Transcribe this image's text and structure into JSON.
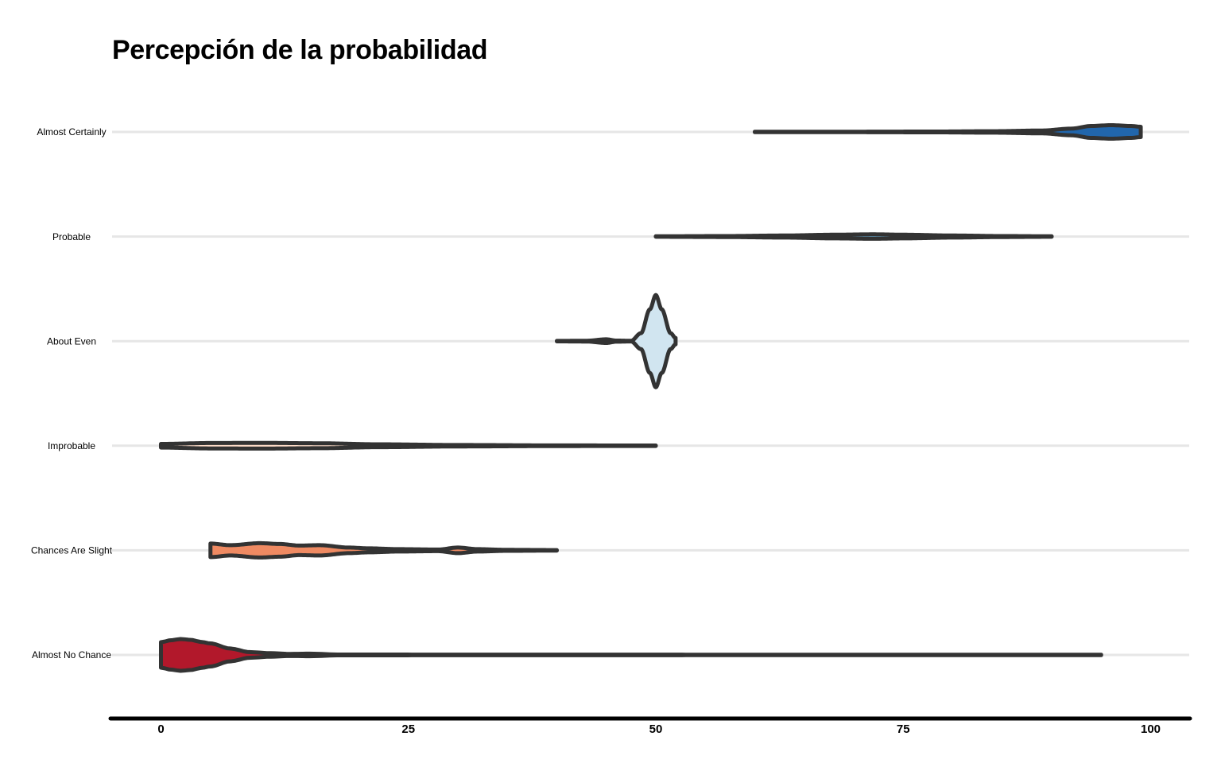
{
  "chart_data": {
    "type": "violin",
    "title": "Percepción de la probabilidad",
    "xlabel": "",
    "ylabel": "",
    "xlim": [
      -10,
      104
    ],
    "xticks": [
      "0",
      "25",
      "50",
      "75",
      "100"
    ],
    "grid": "horizontal",
    "legend": "none",
    "outline_color": "#333333",
    "gridline_color": "#e6e6e6",
    "axis_color": "#000000",
    "categories": [
      "Almost Certainly",
      "Probable",
      "About Even",
      "Improbable",
      "Chances Are Slight",
      "Almost No Chance"
    ],
    "series": [
      {
        "category": "Almost Certainly",
        "color": "#2166ac",
        "range": [
          60,
          99
        ],
        "density": [
          [
            60,
            0.3
          ],
          [
            70,
            0.3
          ],
          [
            78,
            0.5
          ],
          [
            84,
            0.9
          ],
          [
            89,
            1.8
          ],
          [
            92,
            4.2
          ],
          [
            94,
            7.5
          ],
          [
            96,
            8.5
          ],
          [
            98,
            7.5
          ],
          [
            99,
            6.5
          ]
        ]
      },
      {
        "category": "Probable",
        "color": "#67a9cf",
        "range": [
          50,
          90
        ],
        "density": [
          [
            50,
            0.3
          ],
          [
            57,
            0.6
          ],
          [
            63,
            1.3
          ],
          [
            68,
            2.3
          ],
          [
            72,
            2.8
          ],
          [
            75,
            2.3
          ],
          [
            80,
            1.3
          ],
          [
            85,
            0.6
          ],
          [
            90,
            0.3
          ]
        ]
      },
      {
        "category": "About Even",
        "color": "#d1e5f0",
        "range": [
          40,
          52
        ],
        "density": [
          [
            40,
            0.3
          ],
          [
            43,
            0.5
          ],
          [
            45,
            2.3
          ],
          [
            46,
            0.7
          ],
          [
            47.5,
            0.4
          ],
          [
            48.5,
            10
          ],
          [
            49.4,
            40
          ],
          [
            50,
            58
          ],
          [
            50.6,
            40
          ],
          [
            51.5,
            10
          ],
          [
            52,
            4
          ]
        ]
      },
      {
        "category": "Improbable",
        "color": "#fddbc7",
        "range": [
          0,
          50
        ],
        "density": [
          [
            0,
            2.3
          ],
          [
            5,
            3.4
          ],
          [
            10,
            3.6
          ],
          [
            16,
            3.1
          ],
          [
            22,
            1.8
          ],
          [
            30,
            0.9
          ],
          [
            40,
            0.4
          ],
          [
            50,
            0.3
          ]
        ]
      },
      {
        "category": "Chances Are Slight",
        "color": "#ef8a62",
        "range": [
          5,
          40
        ],
        "density": [
          [
            5,
            8.5
          ],
          [
            7,
            6.5
          ],
          [
            10,
            9
          ],
          [
            12,
            8
          ],
          [
            14,
            6
          ],
          [
            16,
            6.5
          ],
          [
            19,
            3.5
          ],
          [
            21,
            2.5
          ],
          [
            24,
            1.5
          ],
          [
            28,
            1
          ],
          [
            30,
            3.5
          ],
          [
            32,
            1.5
          ],
          [
            35,
            0.6
          ],
          [
            40,
            0.3
          ]
        ]
      },
      {
        "category": "Almost No Chance",
        "color": "#b2182b",
        "range": [
          0,
          95
        ],
        "density": [
          [
            0,
            16
          ],
          [
            1,
            18.5
          ],
          [
            2,
            20
          ],
          [
            3,
            19
          ],
          [
            4,
            16.5
          ],
          [
            5,
            14.5
          ],
          [
            7,
            8
          ],
          [
            9,
            3.5
          ],
          [
            11,
            2.2
          ],
          [
            13,
            1.3
          ],
          [
            15,
            1.6
          ],
          [
            18,
            0.5
          ],
          [
            30,
            0.4
          ],
          [
            60,
            0.3
          ],
          [
            90,
            0.3
          ],
          [
            95,
            0.3
          ]
        ]
      }
    ]
  }
}
